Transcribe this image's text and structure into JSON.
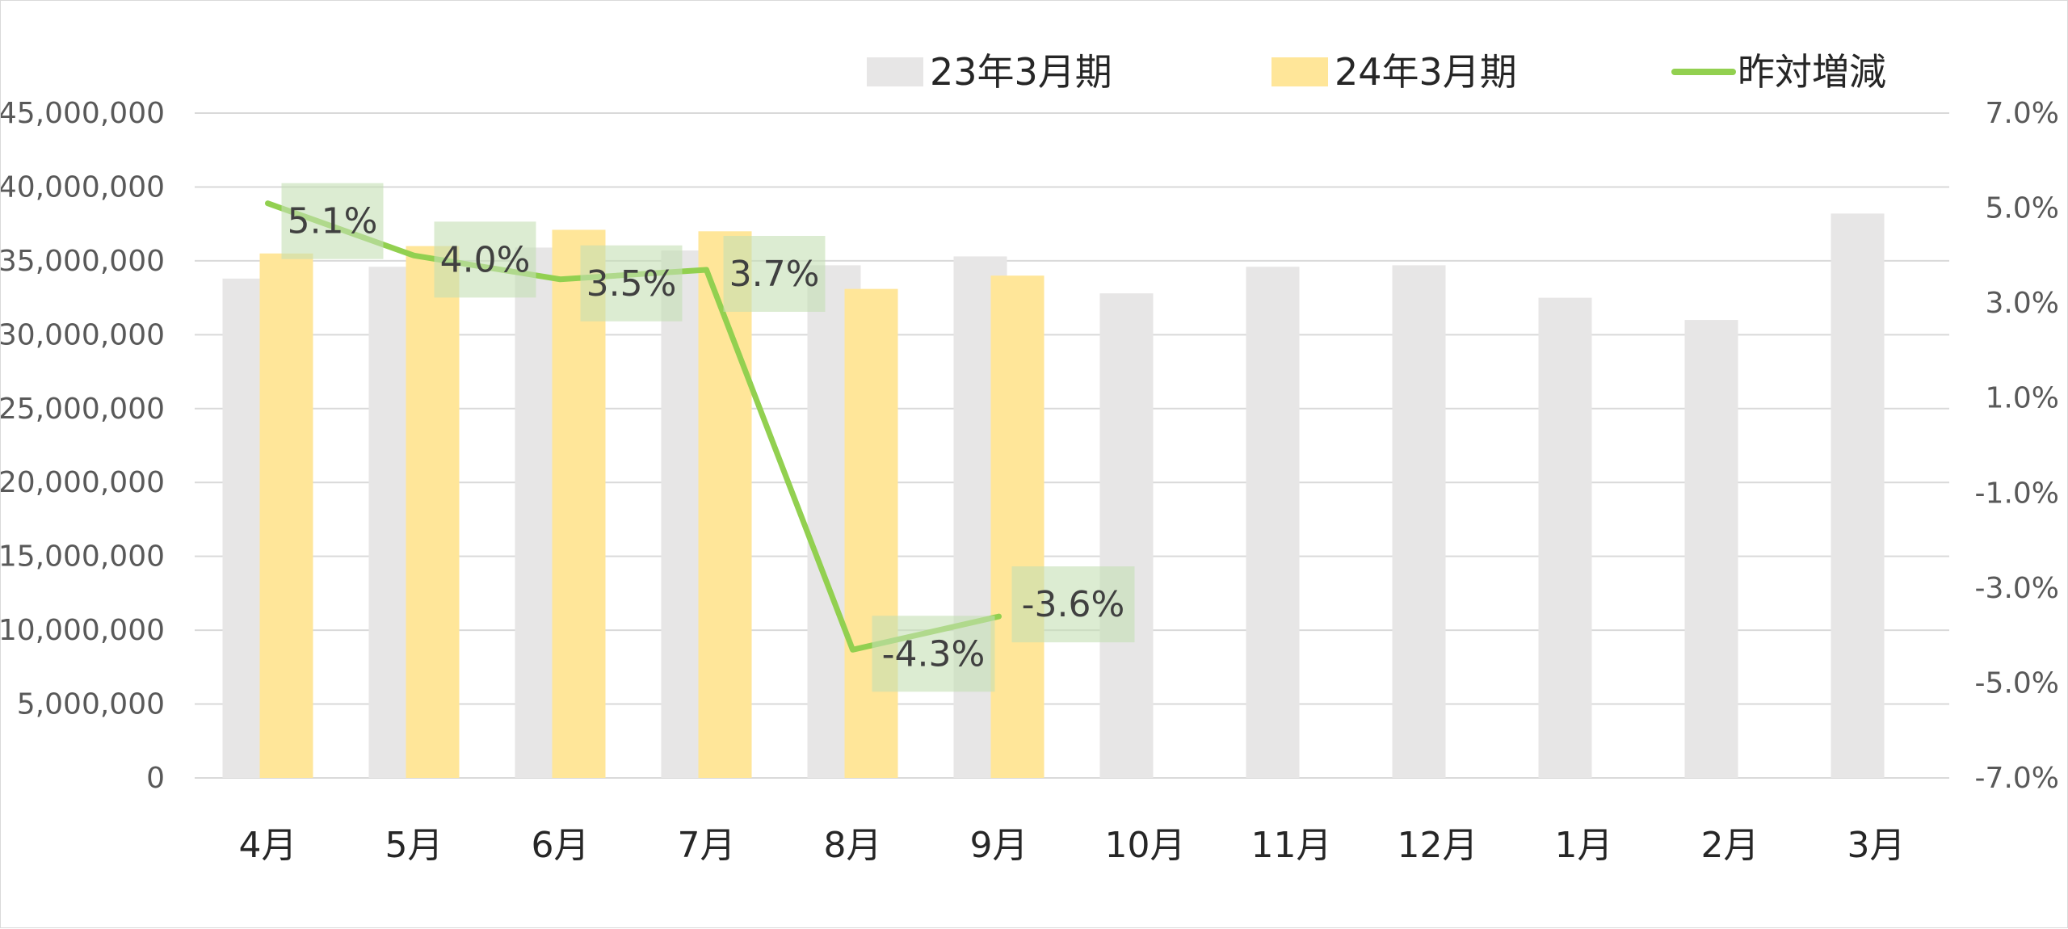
{
  "chart_data": {
    "type": "bar",
    "title": "",
    "categories": [
      "4月",
      "5月",
      "6月",
      "7月",
      "8月",
      "9月",
      "10月",
      "11月",
      "12月",
      "1月",
      "2月",
      "3月"
    ],
    "series": [
      {
        "name": "23年3月期",
        "type": "bar",
        "axis": "left",
        "color": "#e7e6e6",
        "values": [
          33800000,
          34600000,
          35900000,
          35700000,
          34700000,
          35300000,
          32800000,
          34600000,
          34700000,
          32500000,
          31000000,
          38200000
        ]
      },
      {
        "name": "24年3月期",
        "type": "bar",
        "axis": "left",
        "color": "#ffe699",
        "values": [
          35500000,
          36000000,
          37100000,
          37000000,
          33100000,
          34000000,
          null,
          null,
          null,
          null,
          null,
          null
        ]
      },
      {
        "name": "昨対増減",
        "type": "line",
        "axis": "right",
        "color": "#92d050",
        "values": [
          5.1,
          4.0,
          3.5,
          3.7,
          -4.3,
          -3.6,
          null,
          null,
          null,
          null,
          null,
          null
        ],
        "labels": [
          "5.1%",
          "4.0%",
          "3.5%",
          "3.7%",
          "-4.3%",
          "-3.6%"
        ],
        "label_bg": "#c5e0b4"
      }
    ],
    "left_axis": {
      "ylim": [
        0,
        45000000
      ],
      "ticks": [
        "0",
        "5,000,000",
        "10,000,000",
        "15,000,000",
        "20,000,000",
        "25,000,000",
        "30,000,000",
        "35,000,000",
        "40,000,000",
        "45,000,000"
      ]
    },
    "right_axis": {
      "ylim": [
        -7.0,
        7.0
      ],
      "ticks": [
        "-7.0%",
        "-5.0%",
        "-3.0%",
        "-1.0%",
        "1.0%",
        "3.0%",
        "5.0%",
        "7.0%"
      ]
    },
    "grid": true,
    "legend": "top-center",
    "colors": {
      "grid": "#d9d9d9",
      "axis_text": "#595959",
      "category_text": "#262626"
    }
  }
}
